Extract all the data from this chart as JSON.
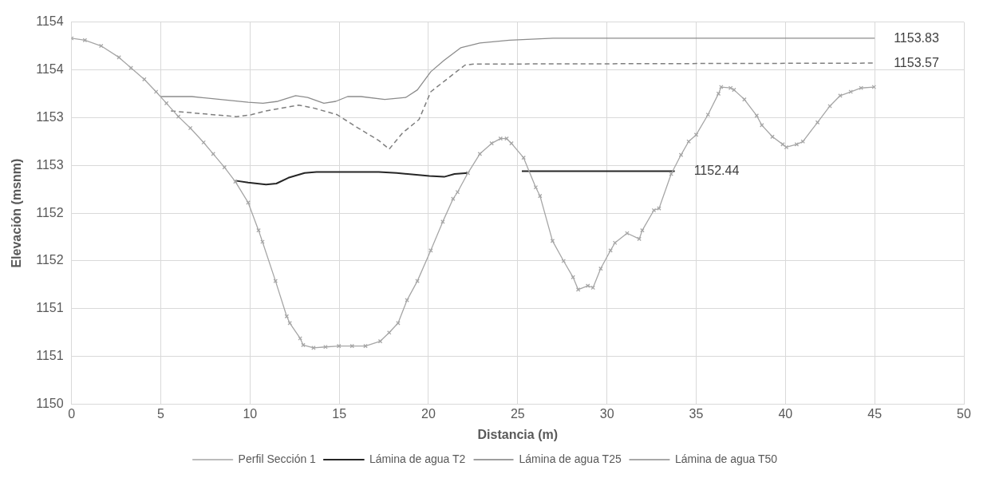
{
  "chart_data": {
    "type": "line",
    "xlabel": "Distancia (m)",
    "ylabel": "Elevación (msnm)",
    "xlim": [
      0,
      50
    ],
    "xticks": [
      0,
      5,
      10,
      15,
      20,
      25,
      30,
      35,
      40,
      45,
      50
    ],
    "ylim": [
      1150,
      1154
    ],
    "yticks": [
      {
        "value": 1150,
        "label": "1150"
      },
      {
        "value": 1150.5,
        "label": "1151"
      },
      {
        "value": 1151,
        "label": "1151"
      },
      {
        "value": 1151.5,
        "label": "1152"
      },
      {
        "value": 1152,
        "label": "1152"
      },
      {
        "value": 1152.5,
        "label": "1153"
      },
      {
        "value": 1153,
        "label": "1153"
      },
      {
        "value": 1153.5,
        "label": "1154"
      },
      {
        "value": 1154,
        "label": "1154"
      }
    ],
    "grid": true,
    "legend": "bottom",
    "series": [
      {
        "name": "Perfil Sección 1",
        "color": "#a6a6a6",
        "marker": "cross",
        "line_style": "solid",
        "x": [
          0,
          0.75,
          1.66,
          2.66,
          3.33,
          4.08,
          4.74,
          5.32,
          5.99,
          6.66,
          7.4,
          7.94,
          8.57,
          9.18,
          9.9,
          10.48,
          10.7,
          11.43,
          12.06,
          12.23,
          12.81,
          12.98,
          13.56,
          14.23,
          14.98,
          15.72,
          16.47,
          17.3,
          17.8,
          18.3,
          18.8,
          19.38,
          20.13,
          20.8,
          21.38,
          21.63,
          22.21,
          22.88,
          23.54,
          24.04,
          24.38,
          24.65,
          25.33,
          26.01,
          26.25,
          26.95,
          27.57,
          28.1,
          28.39,
          28.93,
          29.22,
          29.65,
          30.2,
          30.45,
          31.13,
          31.81,
          31.98,
          32.63,
          32.92,
          33.6,
          34.15,
          34.58,
          35,
          35.66,
          36.25,
          36.4,
          36.93,
          37.12,
          37.7,
          38.39,
          38.68,
          39.27,
          39.85,
          40.05,
          40.63,
          40.98,
          41.8,
          42.49,
          43.07,
          43.66,
          44.24,
          44.96
        ],
        "values": [
          1153.83,
          1153.81,
          1153.75,
          1153.63,
          1153.52,
          1153.4,
          1153.27,
          1153.15,
          1153.01,
          1152.89,
          1152.74,
          1152.62,
          1152.48,
          1152.33,
          1152.11,
          1151.82,
          1151.7,
          1151.29,
          1150.92,
          1150.85,
          1150.69,
          1150.62,
          1150.59,
          1150.6,
          1150.61,
          1150.61,
          1150.61,
          1150.66,
          1150.75,
          1150.85,
          1151.09,
          1151.29,
          1151.61,
          1151.91,
          1152.15,
          1152.22,
          1152.42,
          1152.62,
          1152.73,
          1152.78,
          1152.78,
          1152.73,
          1152.58,
          1152.27,
          1152.18,
          1151.71,
          1151.5,
          1151.33,
          1151.2,
          1151.24,
          1151.22,
          1151.42,
          1151.61,
          1151.69,
          1151.79,
          1151.73,
          1151.82,
          1152.03,
          1152.05,
          1152.41,
          1152.61,
          1152.75,
          1152.82,
          1153.03,
          1153.25,
          1153.32,
          1153.31,
          1153.29,
          1153.19,
          1153.02,
          1152.92,
          1152.8,
          1152.72,
          1152.69,
          1152.72,
          1152.75,
          1152.95,
          1153.12,
          1153.23,
          1153.27,
          1153.31,
          1153.32
        ]
      },
      {
        "name": "Lámina de agua T2",
        "color": "#262626",
        "marker": "none",
        "line_style": "solid",
        "x": [
          9.18,
          9.9,
          10.9,
          11.48,
          12.15,
          13.06,
          13.73,
          17.22,
          18.22,
          20.05,
          20.88,
          21.46,
          22.21,
          23.5,
          25.23,
          33.8
        ],
        "values": [
          1152.34,
          1152.32,
          1152.3,
          1152.31,
          1152.37,
          1152.42,
          1152.43,
          1152.43,
          1152.42,
          1152.39,
          1152.38,
          1152.41,
          1152.42,
          null,
          1152.44,
          1152.44
        ],
        "value_labels": [
          null,
          null,
          null,
          null,
          null,
          null,
          null,
          null,
          null,
          null,
          null,
          null,
          null,
          null,
          null,
          "1152.44"
        ]
      },
      {
        "name": "Lámina de agua T25",
        "color": "#7f7f7f",
        "marker": "none",
        "line_style": "dashed",
        "x": [
          5.57,
          6.74,
          9.23,
          10.07,
          10.9,
          12.73,
          13.56,
          14.89,
          15.89,
          17.22,
          17.8,
          18.55,
          19.47,
          20.13,
          20.88,
          22.05,
          22.55,
          45
        ],
        "values": [
          1153.07,
          1153.05,
          1153.01,
          1153.03,
          1153.07,
          1153.13,
          1153.1,
          1153.03,
          1152.91,
          1152.76,
          1152.67,
          1152.84,
          1152.98,
          1153.27,
          1153.38,
          1153.55,
          1153.56,
          1153.57
        ],
        "value_labels": [
          null,
          null,
          null,
          null,
          null,
          null,
          null,
          null,
          null,
          null,
          null,
          null,
          null,
          null,
          null,
          null,
          null,
          "1153.57"
        ]
      },
      {
        "name": "Lámina de agua T50",
        "color": "#8c8c8c",
        "marker": "none",
        "line_style": "solid",
        "x": [
          4.99,
          6.74,
          8.9,
          9.9,
          10.73,
          11.56,
          12.56,
          13.23,
          14.14,
          14.81,
          15.47,
          16.22,
          17.55,
          18.72,
          19.38,
          20.13,
          20.88,
          21.8,
          22.88,
          24.54,
          26.99,
          45
        ],
        "values": [
          1153.22,
          1153.22,
          1153.18,
          1153.16,
          1153.15,
          1153.17,
          1153.23,
          1153.21,
          1153.15,
          1153.17,
          1153.22,
          1153.22,
          1153.19,
          1153.21,
          1153.29,
          1153.48,
          1153.6,
          1153.73,
          1153.78,
          1153.81,
          1153.83,
          1153.83
        ],
        "value_labels": [
          null,
          null,
          null,
          null,
          null,
          null,
          null,
          null,
          null,
          null,
          null,
          null,
          null,
          null,
          null,
          null,
          null,
          null,
          null,
          null,
          null,
          "1153.83"
        ]
      }
    ]
  }
}
